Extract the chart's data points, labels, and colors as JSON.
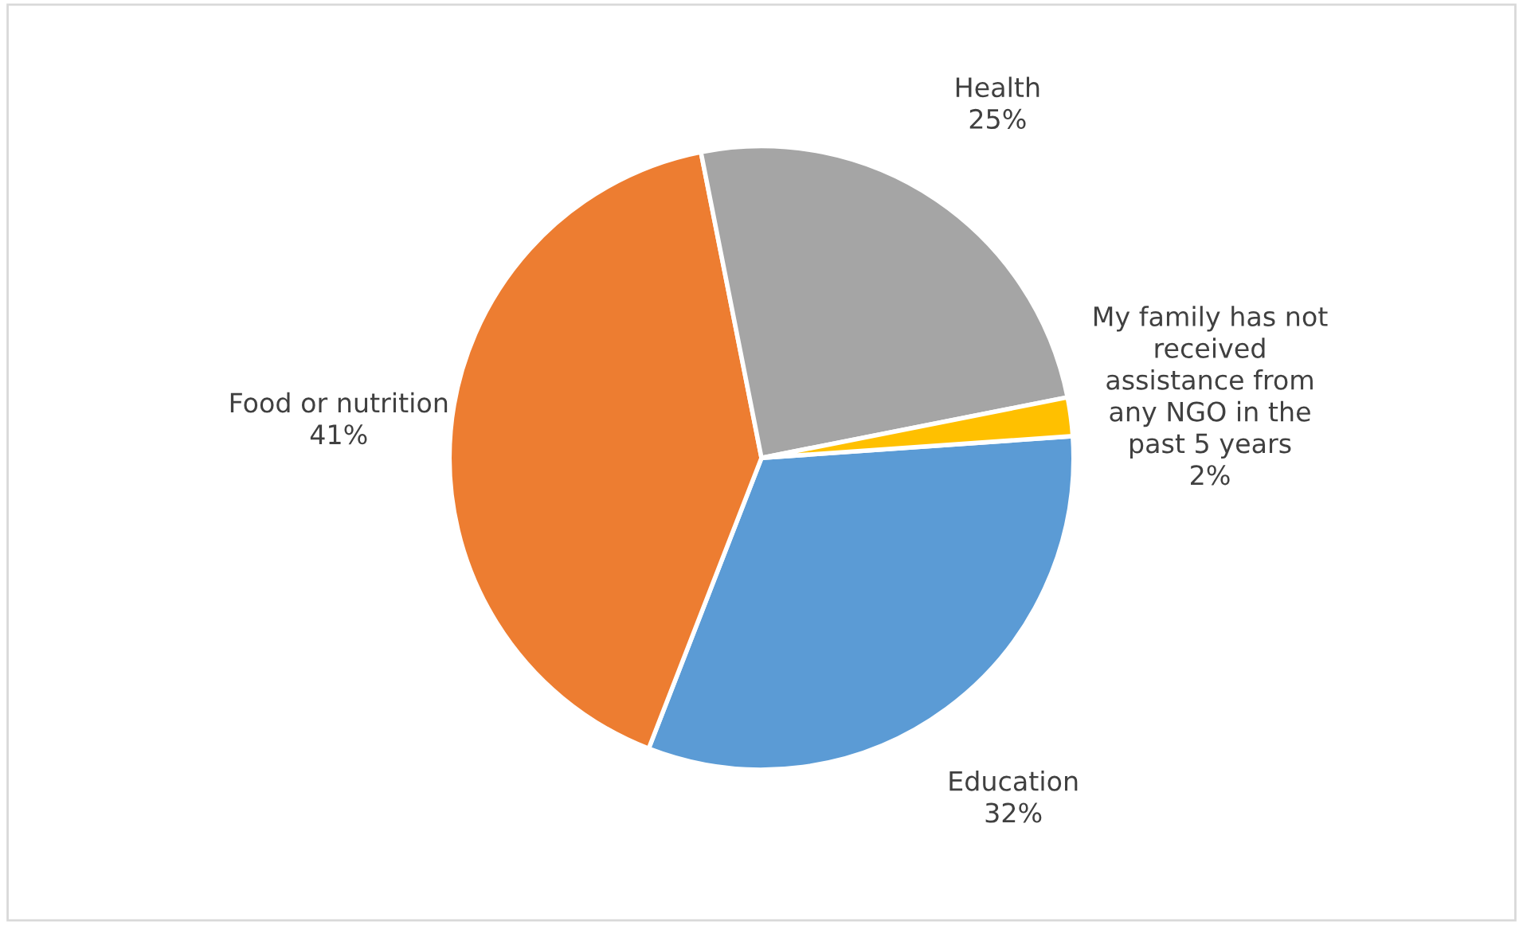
{
  "chart_data": {
    "type": "pie",
    "categories": [
      "Education",
      "Food or nutrition",
      "Health",
      "My family has not\nreceived\nassistance from\nany NGO in the\npast 5 years"
    ],
    "values": [
      32,
      41,
      25,
      2
    ],
    "colors": [
      "#5b9bd5",
      "#ed7d31",
      "#a5a5a5",
      "#ffc000"
    ],
    "value_labels": [
      "32%",
      "41%",
      "25%",
      "2%"
    ],
    "legend": false
  }
}
